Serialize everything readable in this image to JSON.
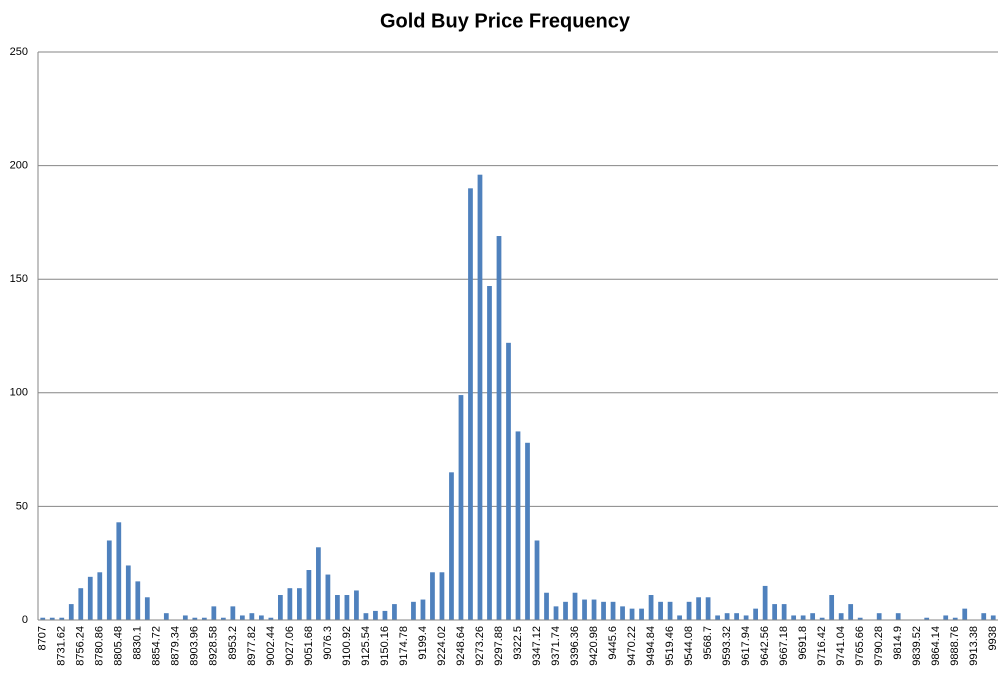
{
  "chart_data": {
    "type": "bar",
    "title": "Gold Buy Price Frequency",
    "categories": [
      "8707",
      null,
      "8731.62",
      null,
      "8756.24",
      null,
      "8780.86",
      null,
      "8805.48",
      null,
      "8830.1",
      null,
      "8854.72",
      null,
      "8879.34",
      null,
      "8903.96",
      null,
      "8928.58",
      null,
      "8953.2",
      null,
      "8977.82",
      null,
      "9002.44",
      null,
      "9027.06",
      null,
      "9051.68",
      null,
      "9076.3",
      null,
      "9100.92",
      null,
      "9125.54",
      null,
      "9150.16",
      null,
      "9174.78",
      null,
      "9199.4",
      null,
      "9224.02",
      null,
      "9248.64",
      null,
      "9273.26",
      null,
      "9297.88",
      null,
      "9322.5",
      null,
      "9347.12",
      null,
      "9371.74",
      null,
      "9396.36",
      null,
      "9420.98",
      null,
      "9445.6",
      null,
      "9470.22",
      null,
      "9494.84",
      null,
      "9519.46",
      null,
      "9544.08",
      null,
      "9568.7",
      null,
      "9593.32",
      null,
      "9617.94",
      null,
      "9642.56",
      null,
      "9667.18",
      null,
      "9691.8",
      null,
      "9716.42",
      null,
      "9741.04",
      null,
      "9765.66",
      null,
      "9790.28",
      null,
      "9814.9",
      null,
      "9839.52",
      null,
      "9864.14",
      null,
      "9888.76",
      null,
      "9913.38",
      null,
      "9938"
    ],
    "values": [
      1,
      1,
      1,
      7,
      14,
      19,
      21,
      35,
      43,
      24,
      17,
      10,
      0,
      3,
      0,
      2,
      1,
      1,
      6,
      1,
      6,
      2,
      3,
      2,
      1,
      11,
      14,
      14,
      22,
      32,
      20,
      11,
      11,
      13,
      3,
      4,
      4,
      7,
      0,
      8,
      9,
      21,
      21,
      65,
      99,
      190,
      196,
      147,
      169,
      122,
      83,
      78,
      35,
      12,
      6,
      8,
      12,
      9,
      9,
      8,
      8,
      6,
      5,
      5,
      11,
      8,
      8,
      2,
      8,
      10,
      10,
      2,
      3,
      3,
      2,
      5,
      15,
      7,
      7,
      2,
      2,
      3,
      1,
      11,
      3,
      7,
      1,
      0,
      3,
      0,
      3,
      0,
      0,
      1,
      0,
      2,
      1,
      5,
      0,
      3,
      2
    ],
    "color": "#4f81bd",
    "ylim": [
      0,
      250
    ],
    "yticks": [
      0,
      50,
      100,
      150,
      200,
      250
    ],
    "grid": true
  }
}
